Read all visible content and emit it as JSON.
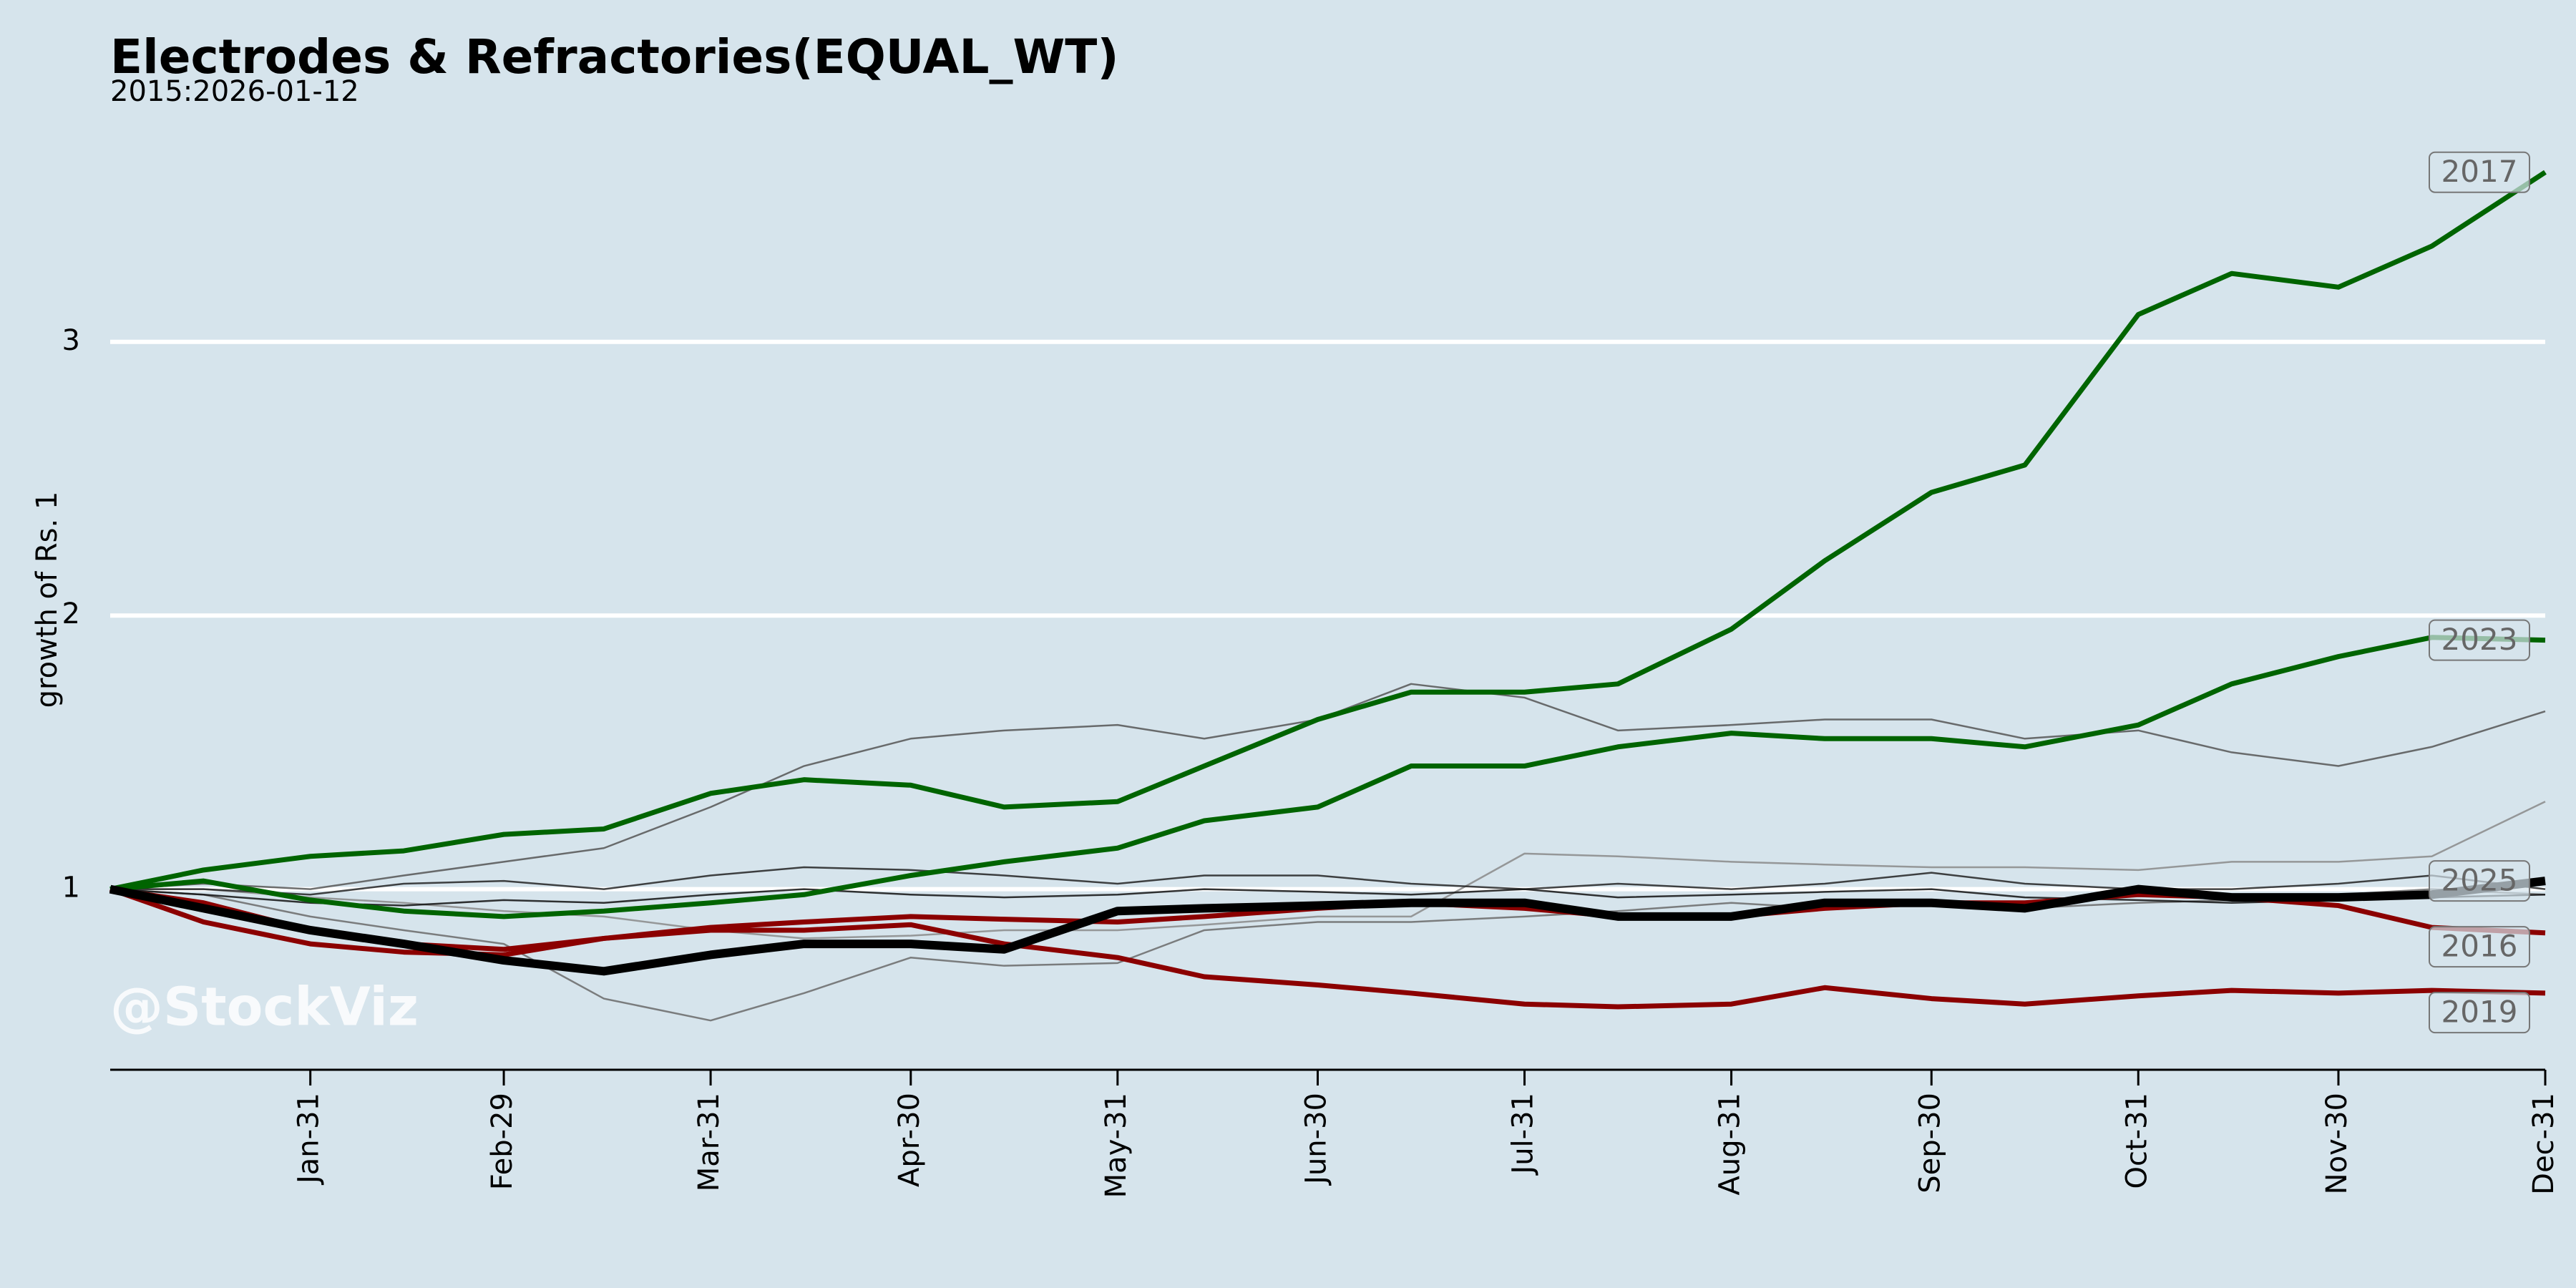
{
  "chart_data": {
    "type": "line",
    "title": "Electrodes & Refractories(EQUAL_WT)",
    "subtitle": "2015:2026-01-12",
    "y_label": "growth of Rs. 1",
    "watermark": "@StockViz",
    "x": [
      1,
      15,
      31,
      45,
      60,
      75,
      91,
      105,
      121,
      135,
      152,
      165,
      182,
      196,
      213,
      227,
      244,
      258,
      274,
      288,
      305,
      319,
      335,
      349,
      366
    ],
    "xlim": [
      1,
      366
    ],
    "xticks": [
      {
        "value": 31,
        "label": "Jan-31"
      },
      {
        "value": 60,
        "label": "Feb-29"
      },
      {
        "value": 91,
        "label": "Mar-31"
      },
      {
        "value": 121,
        "label": "Apr-30"
      },
      {
        "value": 152,
        "label": "May-31"
      },
      {
        "value": 182,
        "label": "Jun-30"
      },
      {
        "value": 213,
        "label": "Jul-31"
      },
      {
        "value": 244,
        "label": "Aug-31"
      },
      {
        "value": 274,
        "label": "Sep-30"
      },
      {
        "value": 305,
        "label": "Oct-31"
      },
      {
        "value": 335,
        "label": "Nov-30"
      },
      {
        "value": 366,
        "label": "Dec-31"
      }
    ],
    "ylim": [
      0.34,
      3.75
    ],
    "yticks": [
      1,
      2,
      3
    ],
    "grid": true,
    "series": [
      {
        "color": "#555555",
        "values": [
          1,
          1.02,
          1.0,
          1.05,
          1.1,
          1.15,
          1.3,
          1.45,
          1.55,
          1.58,
          1.6,
          1.55,
          1.62,
          1.75,
          1.7,
          1.58,
          1.6,
          1.62,
          1.62,
          1.55,
          1.58,
          1.5,
          1.45,
          1.52,
          1.65
        ]
      },
      {
        "color": "#8a8a8a",
        "values": [
          1,
          1.0,
          0.97,
          0.95,
          0.92,
          0.9,
          0.85,
          0.82,
          0.83,
          0.85,
          0.85,
          0.87,
          0.9,
          0.9,
          1.13,
          1.12,
          1.1,
          1.09,
          1.08,
          1.08,
          1.07,
          1.1,
          1.1,
          1.12,
          1.32
        ]
      },
      {
        "color": "#6a6a6a",
        "values": [
          1,
          0.98,
          0.9,
          0.85,
          0.8,
          0.6,
          0.52,
          0.62,
          0.75,
          0.72,
          0.73,
          0.85,
          0.88,
          0.88,
          0.9,
          0.92,
          0.95,
          0.93,
          0.96,
          0.93,
          0.95,
          0.96,
          0.98,
          1.0,
          0.98
        ]
      },
      {
        "color": "#222222",
        "values": [
          1,
          1.0,
          0.98,
          1.02,
          1.03,
          1.0,
          1.05,
          1.08,
          1.07,
          1.05,
          1.02,
          1.05,
          1.05,
          1.02,
          1.0,
          1.02,
          1.0,
          1.02,
          1.06,
          1.02,
          1.0,
          1.0,
          1.02,
          1.05,
          1.0
        ]
      },
      {
        "color": "#111111",
        "values": [
          1,
          0.98,
          0.95,
          0.94,
          0.96,
          0.95,
          0.98,
          1.0,
          0.98,
          0.97,
          0.98,
          1.0,
          0.99,
          0.98,
          1.0,
          0.97,
          0.98,
          0.99,
          1.0,
          0.97,
          0.96,
          0.95,
          0.96,
          0.97,
          0.98
        ]
      },
      {
        "name": "2016",
        "color": "#8b0000",
        "values": [
          1,
          0.88,
          0.8,
          0.77,
          0.76,
          0.82,
          0.86,
          0.88,
          0.9,
          0.89,
          0.88,
          0.9,
          0.93,
          0.95,
          0.93,
          0.9,
          0.9,
          0.93,
          0.95,
          0.95,
          0.98,
          0.97,
          0.94,
          0.86,
          0.84
        ]
      },
      {
        "name": "2019",
        "color": "#8b0000",
        "values": [
          1,
          0.95,
          0.85,
          0.8,
          0.78,
          0.82,
          0.85,
          0.85,
          0.87,
          0.8,
          0.75,
          0.68,
          0.65,
          0.62,
          0.58,
          0.57,
          0.58,
          0.64,
          0.6,
          0.58,
          0.61,
          0.63,
          0.62,
          0.63,
          0.62
        ]
      },
      {
        "name": "2023",
        "color": "#006400",
        "values": [
          1,
          1.03,
          0.96,
          0.92,
          0.9,
          0.92,
          0.95,
          0.98,
          1.05,
          1.1,
          1.15,
          1.25,
          1.3,
          1.45,
          1.45,
          1.52,
          1.57,
          1.55,
          1.55,
          1.52,
          1.6,
          1.75,
          1.85,
          1.92,
          1.91
        ]
      },
      {
        "name": "2017",
        "color": "#006400",
        "values": [
          1,
          1.07,
          1.12,
          1.14,
          1.2,
          1.22,
          1.35,
          1.4,
          1.38,
          1.3,
          1.32,
          1.45,
          1.62,
          1.72,
          1.72,
          1.75,
          1.95,
          2.2,
          2.45,
          2.55,
          3.1,
          3.25,
          3.2,
          3.35,
          3.62
        ]
      },
      {
        "name": "2025",
        "color": "#000000",
        "values": [
          1,
          0.93,
          0.85,
          0.8,
          0.74,
          0.7,
          0.76,
          0.8,
          0.8,
          0.78,
          0.92,
          0.93,
          0.94,
          0.95,
          0.95,
          0.9,
          0.9,
          0.95,
          0.95,
          0.93,
          1.0,
          0.97,
          0.97,
          0.98,
          1.03
        ]
      }
    ]
  }
}
